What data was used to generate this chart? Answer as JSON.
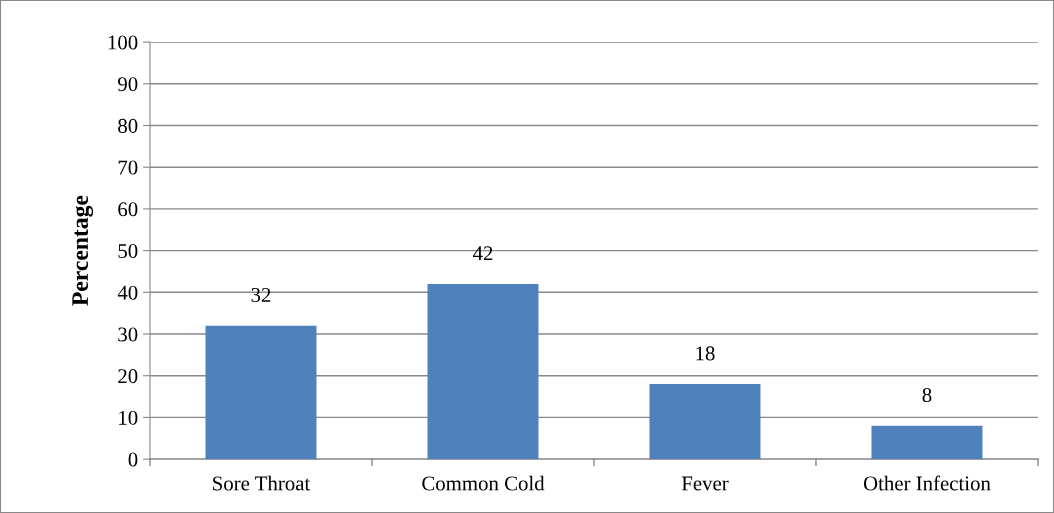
{
  "chart_data": {
    "type": "bar",
    "ylabel": "Percentage",
    "categories": [
      "Sore Throat",
      "Common Cold",
      "Fever",
      "Other Infection"
    ],
    "values": [
      32,
      42,
      18,
      8
    ],
    "color": "#4f81bd",
    "ylim": [
      0,
      100
    ],
    "yticks": [
      0,
      10,
      20,
      30,
      40,
      50,
      60,
      70,
      80,
      90,
      100
    ],
    "grid": "y",
    "data_labels": true
  }
}
